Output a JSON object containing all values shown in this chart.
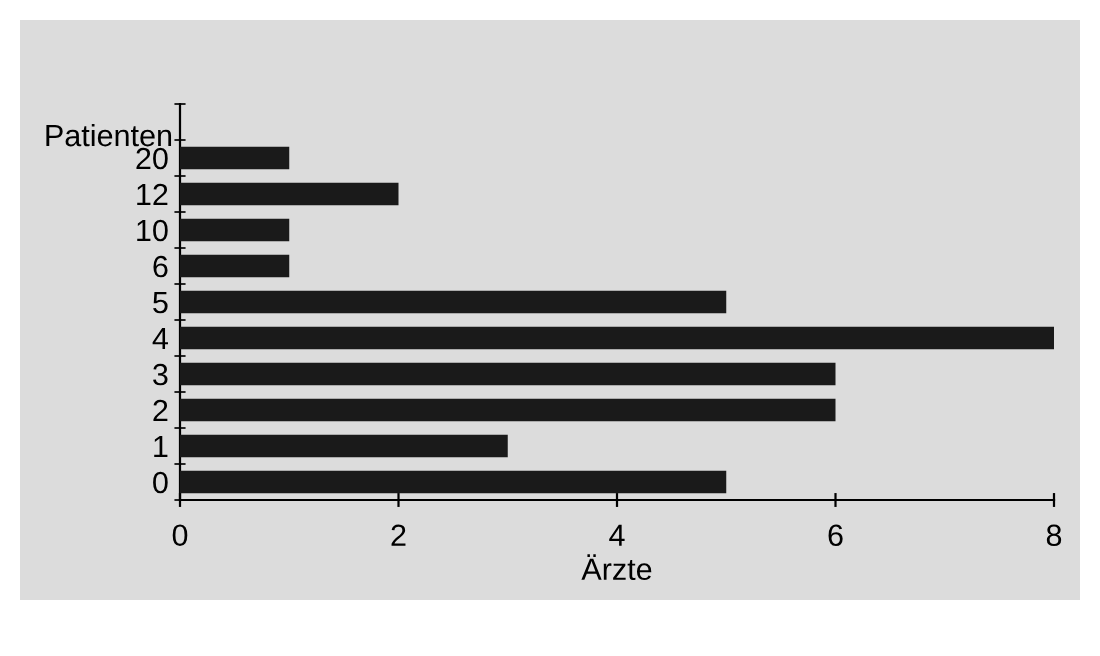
{
  "chart_data": {
    "type": "bar",
    "orientation": "horizontal",
    "categories": [
      "20",
      "12",
      "10",
      "6",
      "5",
      "4",
      "3",
      "2",
      "1",
      "0"
    ],
    "values": [
      1,
      2,
      1,
      1,
      5,
      8,
      6,
      6,
      3,
      5
    ],
    "color": "#1a1a1a",
    "xlabel": "Ärzte",
    "ylabel": "Patienten",
    "xlim": [
      0,
      8
    ],
    "xticks": [
      0,
      2,
      4,
      6,
      8
    ]
  }
}
